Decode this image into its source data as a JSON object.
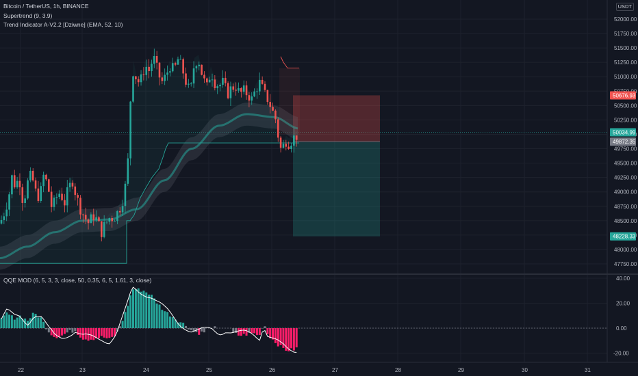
{
  "legend": {
    "symbol": "Bitcoin / TetherUS, 1h, BINANCE",
    "ind1": "Supertrend (9, 3.9)",
    "ind2": "Trend Indicator A-V2.2 [Dziwne] (EMA, 52, 10)",
    "osc": "QQE MOD (6, 5, 3, 3, close, 50, 0.35, 6, 5, 1.61, 3, close)"
  },
  "currency": "USDT",
  "colors": {
    "background": "#131722",
    "up": "#26a69a",
    "down": "#ef5350",
    "qqe_up": "#26a69a",
    "qqe_down": "#ff1e6a",
    "neutral": "#787b86"
  },
  "price_axis": {
    "ticks": [
      "52000.00",
      "51750.00",
      "51500.00",
      "51250.00",
      "51000.00",
      "50750.00",
      "50500.00",
      "50250.00",
      "50000.00",
      "49750.00",
      "49500.00",
      "49250.00",
      "49000.00",
      "48750.00",
      "48500.00",
      "48250.00",
      "48000.00",
      "47750.00"
    ],
    "tags": [
      {
        "label": "50676.93",
        "value": 50676.93,
        "color": "#ef5350"
      },
      {
        "label": "50034.99",
        "value": 50034.99,
        "color": "#26a69a"
      },
      {
        "label": "49872.35",
        "value": 49872.35,
        "color": "#787b86"
      },
      {
        "label": "48228.33",
        "value": 48228.33,
        "color": "#26a69a"
      }
    ]
  },
  "osc_axis": {
    "ticks": [
      "40.00",
      "20.00",
      "0.00",
      "-20.00"
    ]
  },
  "time_axis": {
    "labels": [
      "22",
      "23",
      "24",
      "25",
      "26",
      "27",
      "28",
      "29",
      "30",
      "31"
    ]
  },
  "chart_data": {
    "type": "candlestick",
    "symbol": "BTCUSDT",
    "interval": "1h",
    "y_range": [
      47600,
      52100
    ],
    "position": {
      "entry": 49872.35,
      "stop": 50676.93,
      "target": 48228.33
    },
    "osc_range": [
      -24,
      41
    ]
  }
}
